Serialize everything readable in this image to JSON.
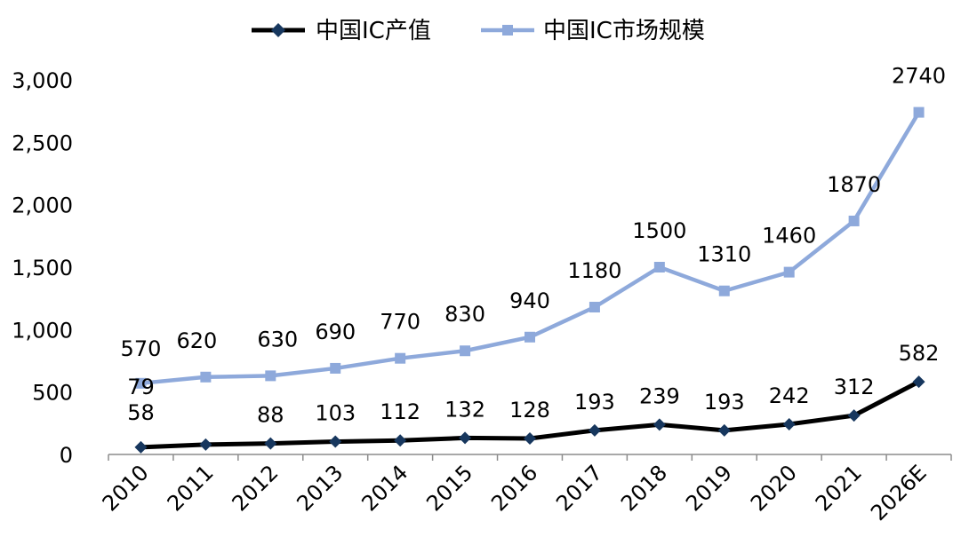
{
  "chart_data": {
    "type": "line",
    "categories": [
      "2010",
      "2011",
      "2012",
      "2013",
      "2014",
      "2015",
      "2016",
      "2017",
      "2018",
      "2019",
      "2020",
      "2021",
      "2026E"
    ],
    "series": [
      {
        "name": "中国IC产值",
        "values": [
          58,
          79,
          88,
          103,
          112,
          132,
          128,
          193,
          239,
          193,
          242,
          312,
          582
        ],
        "color": "#000000",
        "marker_color": "#17375e",
        "marker": "diamond",
        "labels": [
          "58",
          "79",
          "88",
          "103",
          "112",
          "132",
          "128",
          "193",
          "239",
          "193",
          "242",
          "312",
          "582"
        ]
      },
      {
        "name": "中国IC市场规模",
        "values": [
          570,
          620,
          630,
          690,
          770,
          830,
          940,
          1180,
          1500,
          1310,
          1460,
          1870,
          2740
        ],
        "color": "#8ea9db",
        "marker_color": "#8ea9db",
        "marker": "square",
        "labels": [
          "570",
          "620",
          "630",
          "690",
          "770",
          "830",
          "940",
          "1180",
          "1500",
          "1310",
          "1460",
          "1870",
          "2740"
        ]
      }
    ],
    "ylim": [
      0,
      3000
    ],
    "yticks": [
      0,
      500,
      1000,
      1500,
      2000,
      2500,
      3000
    ],
    "ytick_labels": [
      "0",
      "500",
      "1,000",
      "1,500",
      "2,000",
      "2,500",
      "3,000"
    ],
    "grid": false,
    "legend_position": "top-center",
    "title": "",
    "xlabel": "",
    "ylabel": ""
  }
}
